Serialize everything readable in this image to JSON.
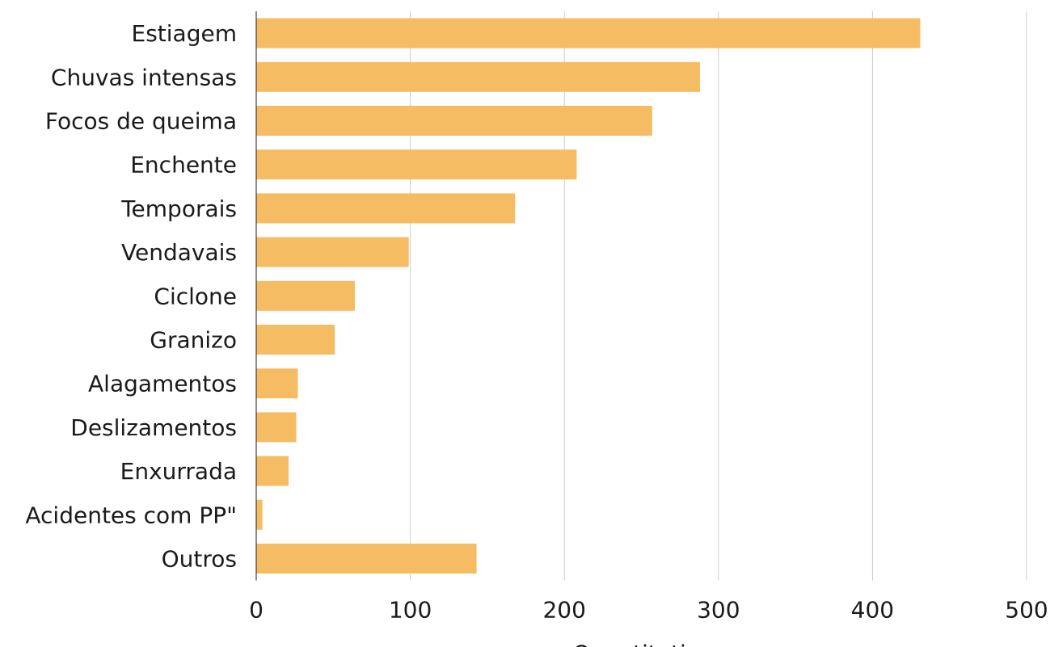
{
  "chart_data": {
    "type": "bar",
    "orientation": "horizontal",
    "categories": [
      "Estiagem",
      "Chuvas intensas",
      "Focos de queima",
      "Enchente",
      "Temporais",
      "Vendavais",
      "Ciclone",
      "Granizo",
      "Alagamentos",
      "Deslizamentos",
      "Enxurrada",
      "Acidentes com PP\"",
      "Outros"
    ],
    "values": [
      431,
      288,
      257,
      208,
      168,
      99,
      64,
      51,
      27,
      26,
      21,
      4,
      143
    ],
    "xlabel": "Quantitativo",
    "ylabel": "",
    "xlim": [
      0,
      500
    ],
    "xticks": [
      0,
      100,
      200,
      300,
      400,
      500
    ],
    "grid": "vertical",
    "colors": {
      "bar": "#F6BC63",
      "grid": "#cccccc",
      "axis": "#1a1a1a",
      "text": "#1a1a1a"
    }
  }
}
